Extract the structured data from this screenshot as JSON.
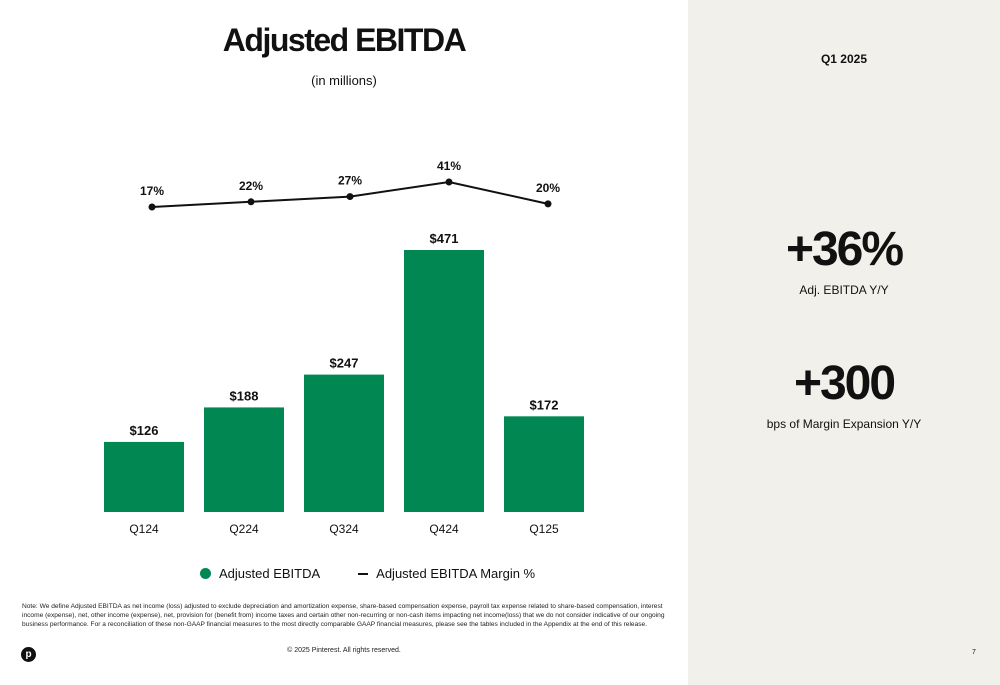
{
  "slide": {
    "title": "Adjusted EBITDA",
    "subtitle": "(in millions)",
    "note": "Note: We define Adjusted EBITDA as net income (loss) adjusted to exclude depreciation and amortization expense, share-based compensation expense, payroll tax expense related to share-based compensation, interest income (expense), net, other income (expense), net, provision for (benefit from) income taxes and certain other non-recurring or non-cash items impacting net income(loss) that we do not consider indicative of our ongoing business performance. For a reconciliation of these non-GAAP financial measures to the most directly comparable GAAP financial measures, please see the tables included in the Appendix at the end of this release.",
    "copyright": "© 2025 Pinterest. All rights reserved.",
    "logo_glyph": "p",
    "page_number": "7"
  },
  "sidebar": {
    "period": "Q1 2025",
    "kpi1": {
      "value": "+36%",
      "label": "Adj. EBITDA Y/Y"
    },
    "kpi2": {
      "value": "+300",
      "label": "bps of Margin Expansion Y/Y"
    }
  },
  "legend": {
    "bar_label": "Adjusted EBITDA",
    "line_label": "Adjusted EBITDA Margin %"
  },
  "chart_data": {
    "type": "bar",
    "title": "Adjusted EBITDA",
    "subtitle": "(in millions)",
    "categories": [
      "Q124",
      "Q224",
      "Q324",
      "Q424",
      "Q125"
    ],
    "series": [
      {
        "name": "Adjusted EBITDA",
        "type": "bar",
        "values": [
          126,
          188,
          247,
          471,
          172
        ],
        "labels": [
          "$126",
          "$188",
          "$247",
          "$471",
          "$172"
        ],
        "color": "#008752"
      },
      {
        "name": "Adjusted EBITDA Margin %",
        "type": "line",
        "values": [
          17,
          22,
          27,
          41,
          20
        ],
        "labels": [
          "17%",
          "22%",
          "27%",
          "41%",
          "20%"
        ],
        "color": "#111111"
      }
    ],
    "grid": false,
    "legend_position": "bottom"
  }
}
